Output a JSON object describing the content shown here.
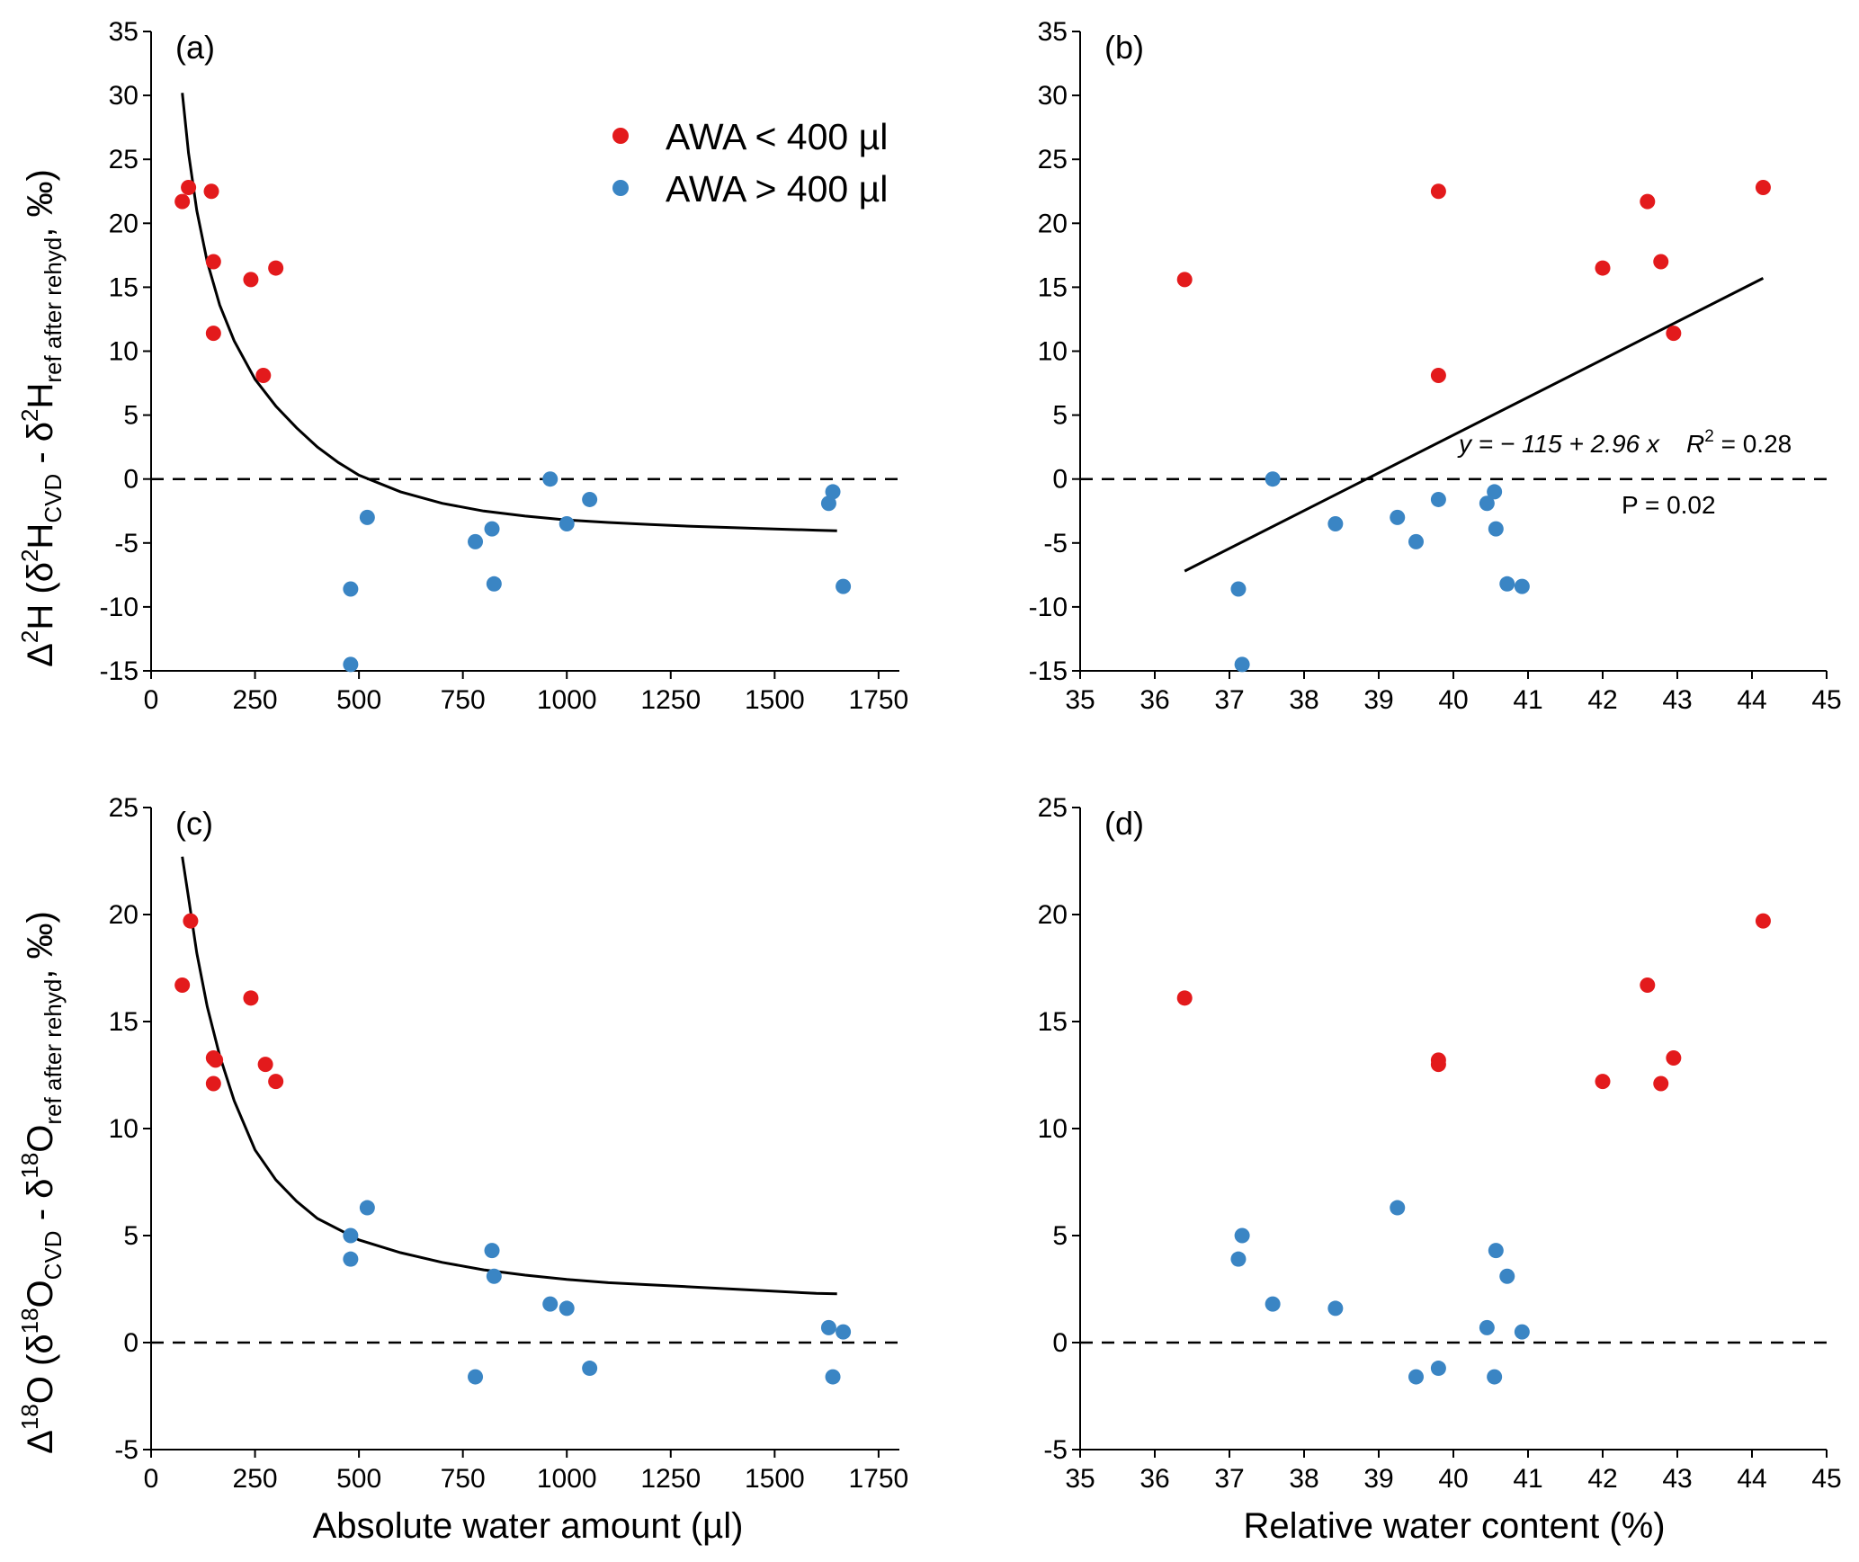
{
  "colors": {
    "red": "#e31a1c",
    "blue": "#3a85c4",
    "line": "#000000"
  },
  "legend": {
    "red_label": "AWA < 400 µl",
    "blue_label": "AWA > 400 µl"
  },
  "x_titles": {
    "absolute": "Absolute water amount (µl)",
    "relative": "Relative water content (%)"
  },
  "y_titles": {
    "top": {
      "delta": "Δ",
      "sup": "2",
      "base": "H (δ",
      "sup2": "2",
      "mid": "H",
      "sub1": "CVD",
      "dash": " - δ",
      "sup3": "2",
      "mid2": "H",
      "sub2": "ref after rehyd",
      "end": ", ‰)"
    },
    "bottom": {
      "delta": "Δ",
      "sup": "18",
      "base": "O (δ",
      "sup2": "18",
      "mid": "O",
      "sub1": "CVD",
      "dash": " - δ",
      "sup3": "18",
      "mid2": "O",
      "sub2": "ref after rehyd",
      "end": ", ‰)"
    }
  },
  "chart_data": [
    {
      "panel": "(a)",
      "type": "scatter",
      "xlim": [
        0,
        1800
      ],
      "ylim": [
        -15,
        35
      ],
      "xticks": [
        0,
        250,
        500,
        750,
        1000,
        1250,
        1500,
        1750
      ],
      "yticks": [
        -15,
        -10,
        -5,
        0,
        5,
        10,
        15,
        20,
        25,
        30,
        35
      ],
      "xlabel": "",
      "ylabel": "top",
      "legend": true,
      "reference_line": 0,
      "fit": {
        "kind": "curve",
        "points": [
          [
            75,
            30.2
          ],
          [
            90,
            25.5
          ],
          [
            110,
            21.0
          ],
          [
            135,
            17.0
          ],
          [
            165,
            13.6
          ],
          [
            200,
            10.8
          ],
          [
            250,
            7.8
          ],
          [
            300,
            5.7
          ],
          [
            350,
            4.0
          ],
          [
            400,
            2.5
          ],
          [
            450,
            1.3
          ],
          [
            500,
            0.3
          ],
          [
            600,
            -1.0
          ],
          [
            700,
            -1.9
          ],
          [
            800,
            -2.5
          ],
          [
            900,
            -2.9
          ],
          [
            1000,
            -3.2
          ],
          [
            1100,
            -3.4
          ],
          [
            1200,
            -3.55
          ],
          [
            1300,
            -3.7
          ],
          [
            1400,
            -3.8
          ],
          [
            1500,
            -3.9
          ],
          [
            1600,
            -4.0
          ],
          [
            1650,
            -4.05
          ]
        ]
      },
      "series": [
        {
          "name": "AWA < 400 µl",
          "color": "red",
          "points": [
            [
              75,
              21.7
            ],
            [
              90,
              22.8
            ],
            [
              145,
              22.5
            ],
            [
              150,
              17.0
            ],
            [
              150,
              11.4
            ],
            [
              240,
              15.6
            ],
            [
              270,
              8.1
            ],
            [
              300,
              16.5
            ]
          ]
        },
        {
          "name": "AWA > 400 µl",
          "color": "blue",
          "points": [
            [
              480,
              -8.6
            ],
            [
              480,
              -14.5
            ],
            [
              520,
              -3.0
            ],
            [
              780,
              -4.9
            ],
            [
              820,
              -3.9
            ],
            [
              825,
              -8.2
            ],
            [
              960,
              0.0
            ],
            [
              1000,
              -3.5
            ],
            [
              1055,
              -1.6
            ],
            [
              1630,
              -1.9
            ],
            [
              1640,
              -1.0
            ],
            [
              1665,
              -8.4
            ]
          ]
        }
      ]
    },
    {
      "panel": "(b)",
      "type": "scatter",
      "xlim": [
        35,
        45
      ],
      "ylim": [
        -15,
        35
      ],
      "xticks": [
        35,
        36,
        37,
        38,
        39,
        40,
        41,
        42,
        43,
        44,
        45
      ],
      "yticks": [
        -15,
        -10,
        -5,
        0,
        5,
        10,
        15,
        20,
        25,
        30,
        35
      ],
      "xlabel": "",
      "ylabel": "",
      "legend": false,
      "reference_line": 0,
      "fit": {
        "kind": "line",
        "points": [
          [
            36.4,
            -7.2
          ],
          [
            44.15,
            15.7
          ]
        ]
      },
      "annotations": {
        "equation": "y = − 115 + 2.96 x",
        "r2_label": "R",
        "r2_sup": "2",
        "r2_value": " = 0.28",
        "p_value": "P = 0.02"
      },
      "series": [
        {
          "name": "AWA < 400 µl",
          "color": "red",
          "points": [
            [
              36.4,
              15.6
            ],
            [
              39.8,
              22.5
            ],
            [
              39.8,
              8.1
            ],
            [
              42.0,
              16.5
            ],
            [
              42.6,
              21.7
            ],
            [
              42.78,
              17.0
            ],
            [
              42.95,
              11.4
            ],
            [
              44.15,
              22.8
            ]
          ]
        },
        {
          "name": "AWA > 400 µl",
          "color": "blue",
          "points": [
            [
              37.12,
              -8.6
            ],
            [
              37.17,
              -14.5
            ],
            [
              37.58,
              0.0
            ],
            [
              38.42,
              -3.5
            ],
            [
              39.25,
              -3.0
            ],
            [
              39.5,
              -4.9
            ],
            [
              39.8,
              -1.6
            ],
            [
              40.45,
              -1.9
            ],
            [
              40.55,
              -1.0
            ],
            [
              40.57,
              -3.9
            ],
            [
              40.72,
              -8.2
            ],
            [
              40.92,
              -8.4
            ]
          ]
        }
      ]
    },
    {
      "panel": "(c)",
      "type": "scatter",
      "xlim": [
        0,
        1800
      ],
      "ylim": [
        -5,
        25
      ],
      "xticks": [
        0,
        250,
        500,
        750,
        1000,
        1250,
        1500,
        1750
      ],
      "yticks": [
        -5,
        0,
        5,
        10,
        15,
        20,
        25
      ],
      "xlabel": "absolute",
      "ylabel": "bottom",
      "legend": false,
      "reference_line": 0,
      "fit": {
        "kind": "curve",
        "points": [
          [
            75,
            22.7
          ],
          [
            90,
            20.8
          ],
          [
            110,
            18.2
          ],
          [
            135,
            15.7
          ],
          [
            165,
            13.4
          ],
          [
            200,
            11.3
          ],
          [
            250,
            9.0
          ],
          [
            300,
            7.6
          ],
          [
            350,
            6.6
          ],
          [
            400,
            5.8
          ],
          [
            500,
            4.8
          ],
          [
            600,
            4.2
          ],
          [
            700,
            3.75
          ],
          [
            800,
            3.4
          ],
          [
            900,
            3.15
          ],
          [
            1000,
            2.95
          ],
          [
            1100,
            2.8
          ],
          [
            1200,
            2.7
          ],
          [
            1300,
            2.6
          ],
          [
            1400,
            2.5
          ],
          [
            1500,
            2.4
          ],
          [
            1600,
            2.3
          ],
          [
            1650,
            2.28
          ]
        ]
      },
      "series": [
        {
          "name": "AWA < 400 µl",
          "color": "red",
          "points": [
            [
              75,
              16.7
            ],
            [
              95,
              19.7
            ],
            [
              150,
              13.3
            ],
            [
              155,
              13.2
            ],
            [
              150,
              12.1
            ],
            [
              240,
              16.1
            ],
            [
              275,
              13.0
            ],
            [
              300,
              12.2
            ]
          ]
        },
        {
          "name": "AWA > 400 µl",
          "color": "blue",
          "points": [
            [
              480,
              5.0
            ],
            [
              480,
              3.9
            ],
            [
              520,
              6.3
            ],
            [
              780,
              -1.6
            ],
            [
              820,
              4.3
            ],
            [
              825,
              3.1
            ],
            [
              960,
              1.8
            ],
            [
              1000,
              1.6
            ],
            [
              1055,
              -1.2
            ],
            [
              1630,
              0.7
            ],
            [
              1640,
              -1.6
            ],
            [
              1665,
              0.5
            ]
          ]
        }
      ]
    },
    {
      "panel": "(d)",
      "type": "scatter",
      "xlim": [
        35,
        45
      ],
      "ylim": [
        -5,
        25
      ],
      "xticks": [
        35,
        36,
        37,
        38,
        39,
        40,
        41,
        42,
        43,
        44,
        45
      ],
      "yticks": [
        -5,
        0,
        5,
        10,
        15,
        20,
        25
      ],
      "xlabel": "relative",
      "ylabel": "",
      "legend": false,
      "reference_line": 0,
      "series": [
        {
          "name": "AWA < 400 µl",
          "color": "red",
          "points": [
            [
              36.4,
              16.1
            ],
            [
              39.8,
              13.2
            ],
            [
              39.8,
              13.0
            ],
            [
              42.0,
              12.2
            ],
            [
              42.6,
              16.7
            ],
            [
              42.78,
              12.1
            ],
            [
              42.95,
              13.3
            ],
            [
              44.15,
              19.7
            ]
          ]
        },
        {
          "name": "AWA > 400 µl",
          "color": "blue",
          "points": [
            [
              37.12,
              3.9
            ],
            [
              37.17,
              5.0
            ],
            [
              37.58,
              1.8
            ],
            [
              38.42,
              1.6
            ],
            [
              39.25,
              6.3
            ],
            [
              39.5,
              -1.6
            ],
            [
              39.8,
              -1.2
            ],
            [
              40.45,
              0.7
            ],
            [
              40.55,
              -1.6
            ],
            [
              40.57,
              4.3
            ],
            [
              40.72,
              3.1
            ],
            [
              40.92,
              0.5
            ]
          ]
        }
      ]
    }
  ]
}
